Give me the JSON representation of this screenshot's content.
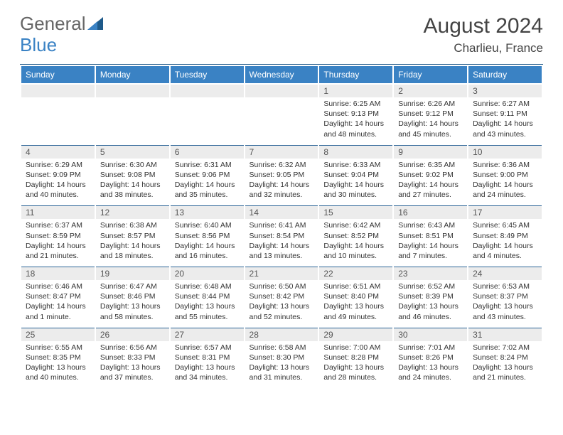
{
  "logo": {
    "part1": "General",
    "part2": "Blue"
  },
  "title": "August 2024",
  "location": "Charlieu, France",
  "colors": {
    "header_bg": "#3a82c4",
    "header_border": "#1e5a8a",
    "row_border": "#2c6598",
    "daynum_bg": "#ececec",
    "text": "#333333"
  },
  "dayHeaders": [
    "Sunday",
    "Monday",
    "Tuesday",
    "Wednesday",
    "Thursday",
    "Friday",
    "Saturday"
  ],
  "weeks": [
    [
      {
        "n": "",
        "lines": []
      },
      {
        "n": "",
        "lines": []
      },
      {
        "n": "",
        "lines": []
      },
      {
        "n": "",
        "lines": []
      },
      {
        "n": "1",
        "lines": [
          "Sunrise: 6:25 AM",
          "Sunset: 9:13 PM",
          "Daylight: 14 hours",
          "and 48 minutes."
        ]
      },
      {
        "n": "2",
        "lines": [
          "Sunrise: 6:26 AM",
          "Sunset: 9:12 PM",
          "Daylight: 14 hours",
          "and 45 minutes."
        ]
      },
      {
        "n": "3",
        "lines": [
          "Sunrise: 6:27 AM",
          "Sunset: 9:11 PM",
          "Daylight: 14 hours",
          "and 43 minutes."
        ]
      }
    ],
    [
      {
        "n": "4",
        "lines": [
          "Sunrise: 6:29 AM",
          "Sunset: 9:09 PM",
          "Daylight: 14 hours",
          "and 40 minutes."
        ]
      },
      {
        "n": "5",
        "lines": [
          "Sunrise: 6:30 AM",
          "Sunset: 9:08 PM",
          "Daylight: 14 hours",
          "and 38 minutes."
        ]
      },
      {
        "n": "6",
        "lines": [
          "Sunrise: 6:31 AM",
          "Sunset: 9:06 PM",
          "Daylight: 14 hours",
          "and 35 minutes."
        ]
      },
      {
        "n": "7",
        "lines": [
          "Sunrise: 6:32 AM",
          "Sunset: 9:05 PM",
          "Daylight: 14 hours",
          "and 32 minutes."
        ]
      },
      {
        "n": "8",
        "lines": [
          "Sunrise: 6:33 AM",
          "Sunset: 9:04 PM",
          "Daylight: 14 hours",
          "and 30 minutes."
        ]
      },
      {
        "n": "9",
        "lines": [
          "Sunrise: 6:35 AM",
          "Sunset: 9:02 PM",
          "Daylight: 14 hours",
          "and 27 minutes."
        ]
      },
      {
        "n": "10",
        "lines": [
          "Sunrise: 6:36 AM",
          "Sunset: 9:00 PM",
          "Daylight: 14 hours",
          "and 24 minutes."
        ]
      }
    ],
    [
      {
        "n": "11",
        "lines": [
          "Sunrise: 6:37 AM",
          "Sunset: 8:59 PM",
          "Daylight: 14 hours",
          "and 21 minutes."
        ]
      },
      {
        "n": "12",
        "lines": [
          "Sunrise: 6:38 AM",
          "Sunset: 8:57 PM",
          "Daylight: 14 hours",
          "and 18 minutes."
        ]
      },
      {
        "n": "13",
        "lines": [
          "Sunrise: 6:40 AM",
          "Sunset: 8:56 PM",
          "Daylight: 14 hours",
          "and 16 minutes."
        ]
      },
      {
        "n": "14",
        "lines": [
          "Sunrise: 6:41 AM",
          "Sunset: 8:54 PM",
          "Daylight: 14 hours",
          "and 13 minutes."
        ]
      },
      {
        "n": "15",
        "lines": [
          "Sunrise: 6:42 AM",
          "Sunset: 8:52 PM",
          "Daylight: 14 hours",
          "and 10 minutes."
        ]
      },
      {
        "n": "16",
        "lines": [
          "Sunrise: 6:43 AM",
          "Sunset: 8:51 PM",
          "Daylight: 14 hours",
          "and 7 minutes."
        ]
      },
      {
        "n": "17",
        "lines": [
          "Sunrise: 6:45 AM",
          "Sunset: 8:49 PM",
          "Daylight: 14 hours",
          "and 4 minutes."
        ]
      }
    ],
    [
      {
        "n": "18",
        "lines": [
          "Sunrise: 6:46 AM",
          "Sunset: 8:47 PM",
          "Daylight: 14 hours",
          "and 1 minute."
        ]
      },
      {
        "n": "19",
        "lines": [
          "Sunrise: 6:47 AM",
          "Sunset: 8:46 PM",
          "Daylight: 13 hours",
          "and 58 minutes."
        ]
      },
      {
        "n": "20",
        "lines": [
          "Sunrise: 6:48 AM",
          "Sunset: 8:44 PM",
          "Daylight: 13 hours",
          "and 55 minutes."
        ]
      },
      {
        "n": "21",
        "lines": [
          "Sunrise: 6:50 AM",
          "Sunset: 8:42 PM",
          "Daylight: 13 hours",
          "and 52 minutes."
        ]
      },
      {
        "n": "22",
        "lines": [
          "Sunrise: 6:51 AM",
          "Sunset: 8:40 PM",
          "Daylight: 13 hours",
          "and 49 minutes."
        ]
      },
      {
        "n": "23",
        "lines": [
          "Sunrise: 6:52 AM",
          "Sunset: 8:39 PM",
          "Daylight: 13 hours",
          "and 46 minutes."
        ]
      },
      {
        "n": "24",
        "lines": [
          "Sunrise: 6:53 AM",
          "Sunset: 8:37 PM",
          "Daylight: 13 hours",
          "and 43 minutes."
        ]
      }
    ],
    [
      {
        "n": "25",
        "lines": [
          "Sunrise: 6:55 AM",
          "Sunset: 8:35 PM",
          "Daylight: 13 hours",
          "and 40 minutes."
        ]
      },
      {
        "n": "26",
        "lines": [
          "Sunrise: 6:56 AM",
          "Sunset: 8:33 PM",
          "Daylight: 13 hours",
          "and 37 minutes."
        ]
      },
      {
        "n": "27",
        "lines": [
          "Sunrise: 6:57 AM",
          "Sunset: 8:31 PM",
          "Daylight: 13 hours",
          "and 34 minutes."
        ]
      },
      {
        "n": "28",
        "lines": [
          "Sunrise: 6:58 AM",
          "Sunset: 8:30 PM",
          "Daylight: 13 hours",
          "and 31 minutes."
        ]
      },
      {
        "n": "29",
        "lines": [
          "Sunrise: 7:00 AM",
          "Sunset: 8:28 PM",
          "Daylight: 13 hours",
          "and 28 minutes."
        ]
      },
      {
        "n": "30",
        "lines": [
          "Sunrise: 7:01 AM",
          "Sunset: 8:26 PM",
          "Daylight: 13 hours",
          "and 24 minutes."
        ]
      },
      {
        "n": "31",
        "lines": [
          "Sunrise: 7:02 AM",
          "Sunset: 8:24 PM",
          "Daylight: 13 hours",
          "and 21 minutes."
        ]
      }
    ]
  ]
}
